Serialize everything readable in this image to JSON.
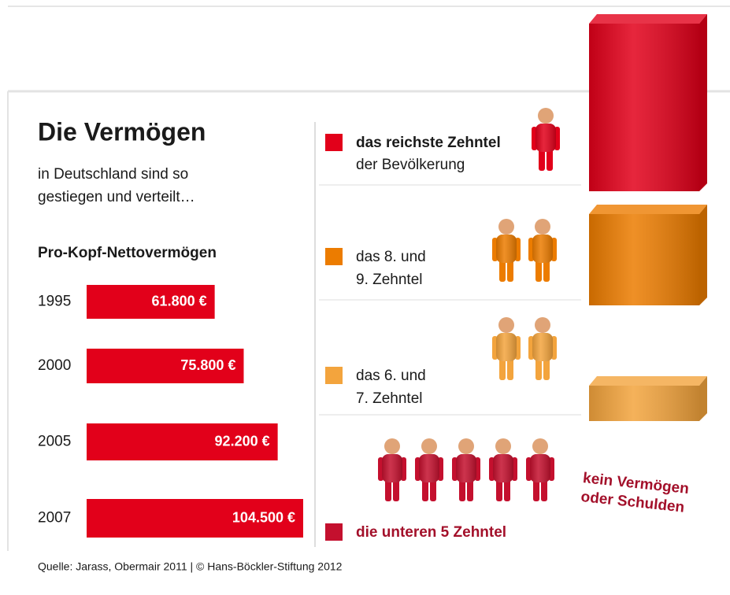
{
  "title": "Die Vermögen",
  "subtitle": [
    "in Deutschland sind so",
    "gestiegen und verteilt…"
  ],
  "chart_data": {
    "type": "bar",
    "orientation": "horizontal",
    "title": "Pro-Kopf-Nettovermögen",
    "categories": [
      "1995",
      "2000",
      "2005",
      "2007"
    ],
    "values": [
      61800,
      75800,
      92200,
      104500
    ],
    "value_labels": [
      "61.800 €",
      "75.800 €",
      "92.200 €",
      "104.500 €"
    ],
    "color": "#e2001a",
    "xlim": [
      0,
      104500
    ]
  },
  "groups": [
    {
      "lines": [
        "das reichste Zehntel",
        "der Bevölkerung"
      ],
      "color": "#e2001a"
    },
    {
      "lines": [
        "das 8. und",
        "9. Zehntel"
      ],
      "color": "#ec7c00"
    },
    {
      "lines": [
        "das 6. und",
        "7. Zehntel"
      ],
      "color": "#f3a43d"
    },
    {
      "lines": [
        "die unteren 5 Zehntel"
      ],
      "color": "#c4102e"
    }
  ],
  "annotation": [
    "kein Vermögen",
    "oder Schulden"
  ],
  "source": "Quelle: Jarass, Obermair 2011 | © Hans-Böckler-Stiftung 2012"
}
